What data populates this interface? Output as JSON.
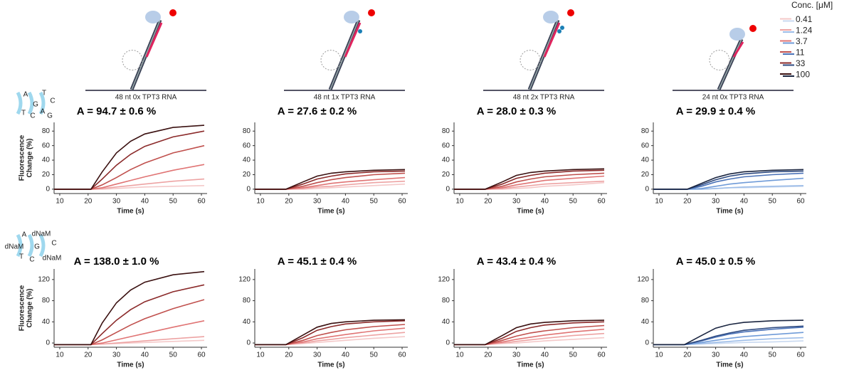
{
  "legend": {
    "title": "Conc. [μM]"
  },
  "schematics": [
    "48 nt 0x TPT3 RNA",
    "48 nt 1x TPT3 RNA",
    "48 nt 2x TPT3 RNA",
    "24 nt 0x TPT3 RNA"
  ],
  "helix_labels": [
    [
      "A",
      "T",
      "G",
      "C",
      "T",
      "C",
      "A",
      "G"
    ],
    [
      "A",
      "dNaM",
      "dNaM",
      "G",
      "C",
      "T",
      "C",
      "dNaM"
    ]
  ],
  "chart_data": [
    {
      "type": "line",
      "title": "A = 94.7 ± 0.6 %",
      "xlabel": "Time (s)",
      "ylabel": [
        "Fluorescence",
        "Change (%)"
      ],
      "xlim": [
        8,
        62
      ],
      "ylim": [
        -6,
        92
      ],
      "xticks": [
        10,
        20,
        30,
        40,
        50,
        60
      ],
      "yticks": [
        0,
        20,
        40,
        60,
        80
      ],
      "x": [
        8,
        21,
        25,
        30,
        35,
        40,
        50,
        61
      ],
      "series": [
        {
          "name": "0.41",
          "color": "#f4c9c9",
          "values": [
            0,
            0,
            0,
            1,
            2,
            3,
            4,
            5
          ]
        },
        {
          "name": "1.24",
          "color": "#eda3a3",
          "values": [
            0,
            0,
            1,
            3,
            5,
            7,
            11,
            14
          ]
        },
        {
          "name": "3.7",
          "color": "#e07474",
          "values": [
            0,
            0,
            2,
            7,
            12,
            17,
            26,
            34
          ]
        },
        {
          "name": "11",
          "color": "#c0504d",
          "values": [
            0,
            0,
            6,
            16,
            27,
            36,
            50,
            60
          ]
        },
        {
          "name": "33",
          "color": "#8b2a2a",
          "values": [
            0,
            0,
            14,
            33,
            48,
            59,
            72,
            80
          ]
        },
        {
          "name": "100",
          "color": "#3a1010",
          "values": [
            0,
            0,
            24,
            50,
            66,
            76,
            85,
            88
          ]
        }
      ]
    },
    {
      "type": "line",
      "title": "A = 27.6 ± 0.2 %",
      "xlabel": "Time (s)",
      "xlim": [
        8,
        62
      ],
      "ylim": [
        -6,
        92
      ],
      "xticks": [
        10,
        20,
        30,
        40,
        50,
        60
      ],
      "yticks": [
        0,
        20,
        40,
        60,
        80
      ],
      "x": [
        8,
        19,
        25,
        30,
        35,
        40,
        50,
        61
      ],
      "series": [
        {
          "color": "#f4c9c9",
          "values": [
            0,
            0,
            0,
            1,
            2,
            3,
            5,
            7
          ]
        },
        {
          "color": "#eda3a3",
          "values": [
            0,
            0,
            1,
            3,
            4,
            6,
            9,
            11
          ]
        },
        {
          "color": "#e07474",
          "values": [
            0,
            0,
            2,
            5,
            8,
            10,
            13,
            16
          ]
        },
        {
          "color": "#c0504d",
          "values": [
            0,
            0,
            4,
            9,
            13,
            16,
            20,
            22
          ]
        },
        {
          "color": "#8b2a2a",
          "values": [
            0,
            0,
            7,
            14,
            18,
            21,
            24,
            25
          ]
        },
        {
          "color": "#3a1010",
          "values": [
            0,
            0,
            10,
            18,
            22,
            24,
            26,
            27
          ]
        }
      ]
    },
    {
      "type": "line",
      "title": "A = 28.0 ± 0.3 %",
      "xlabel": "Time (s)",
      "xlim": [
        8,
        62
      ],
      "ylim": [
        -6,
        92
      ],
      "xticks": [
        10,
        20,
        30,
        40,
        50,
        60
      ],
      "yticks": [
        0,
        20,
        40,
        60,
        80
      ],
      "x": [
        8,
        19,
        25,
        30,
        35,
        40,
        50,
        61
      ],
      "series": [
        {
          "color": "#f4c9c9",
          "values": [
            0,
            0,
            0,
            1,
            2,
            4,
            6,
            9
          ]
        },
        {
          "color": "#eda3a3",
          "values": [
            0,
            0,
            1,
            3,
            5,
            7,
            9,
            11
          ]
        },
        {
          "color": "#e07474",
          "values": [
            0,
            0,
            2,
            6,
            9,
            12,
            15,
            18
          ]
        },
        {
          "color": "#c0504d",
          "values": [
            0,
            0,
            4,
            10,
            14,
            17,
            20,
            22
          ]
        },
        {
          "color": "#8b2a2a",
          "values": [
            0,
            0,
            7,
            15,
            19,
            22,
            25,
            26
          ]
        },
        {
          "color": "#3a1010",
          "values": [
            0,
            0,
            10,
            19,
            23,
            25,
            27,
            28
          ]
        }
      ]
    },
    {
      "type": "line",
      "title": "A = 29.9 ± 0.4 %",
      "xlabel": "Time (s)",
      "xlim": [
        8,
        62
      ],
      "ylim": [
        -6,
        92
      ],
      "xticks": [
        10,
        20,
        30,
        40,
        50,
        60
      ],
      "yticks": [
        0,
        20,
        40,
        60,
        80
      ],
      "x": [
        8,
        20,
        25,
        30,
        35,
        40,
        50,
        61
      ],
      "series": [
        {
          "color": "#c9d9f0",
          "values": [
            0,
            0,
            0,
            1,
            2,
            2,
            3,
            4
          ]
        },
        {
          "color": "#9dbde8",
          "values": [
            0,
            0,
            0,
            1,
            2,
            3,
            4,
            5
          ]
        },
        {
          "color": "#6f9bd8",
          "values": [
            0,
            0,
            1,
            4,
            7,
            9,
            12,
            15
          ]
        },
        {
          "color": "#4a72b8",
          "values": [
            0,
            0,
            4,
            10,
            14,
            17,
            20,
            22
          ]
        },
        {
          "color": "#2e4a80",
          "values": [
            0,
            0,
            6,
            13,
            18,
            21,
            24,
            25
          ]
        },
        {
          "color": "#1a2540",
          "values": [
            0,
            0,
            8,
            16,
            21,
            24,
            26,
            27
          ]
        }
      ]
    },
    {
      "type": "line",
      "title": "A = 138.0 ± 1.0 %",
      "xlabel": "Time (s)",
      "ylabel": [
        "Fluorescence",
        "Change (%)"
      ],
      "xlim": [
        8,
        62
      ],
      "ylim": [
        -8,
        140
      ],
      "xticks": [
        10,
        20,
        30,
        40,
        50,
        60
      ],
      "yticks": [
        0,
        40,
        80,
        120
      ],
      "x": [
        8,
        21,
        25,
        30,
        35,
        40,
        50,
        61
      ],
      "series": [
        {
          "color": "#f4c9c9",
          "values": [
            -3,
            -3,
            -2,
            -1,
            0,
            1,
            3,
            5
          ]
        },
        {
          "color": "#eda3a3",
          "values": [
            -3,
            -3,
            -2,
            0,
            2,
            4,
            8,
            12
          ]
        },
        {
          "color": "#e07474",
          "values": [
            -3,
            -3,
            0,
            6,
            12,
            18,
            30,
            42
          ]
        },
        {
          "color": "#c0504d",
          "values": [
            -3,
            -3,
            6,
            20,
            34,
            46,
            65,
            82
          ]
        },
        {
          "color": "#8b2a2a",
          "values": [
            -3,
            -3,
            18,
            43,
            63,
            78,
            97,
            110
          ]
        },
        {
          "color": "#3a1010",
          "values": [
            -3,
            -3,
            38,
            76,
            100,
            115,
            129,
            135
          ]
        }
      ]
    },
    {
      "type": "line",
      "title": "A = 45.1 ± 0.4 %",
      "xlabel": "Time (s)",
      "xlim": [
        8,
        62
      ],
      "ylim": [
        -8,
        140
      ],
      "xticks": [
        10,
        20,
        30,
        40,
        50,
        60
      ],
      "yticks": [
        0,
        40,
        80,
        120
      ],
      "x": [
        8,
        19,
        25,
        30,
        35,
        40,
        50,
        61
      ],
      "series": [
        {
          "color": "#f4c9c9",
          "values": [
            -3,
            -3,
            -1,
            1,
            3,
            5,
            9,
            12
          ]
        },
        {
          "color": "#eda3a3",
          "values": [
            -3,
            -3,
            0,
            4,
            7,
            10,
            15,
            20
          ]
        },
        {
          "color": "#e07474",
          "values": [
            -3,
            -3,
            2,
            8,
            12,
            16,
            23,
            28
          ]
        },
        {
          "color": "#c0504d",
          "values": [
            -3,
            -3,
            5,
            14,
            20,
            25,
            31,
            35
          ]
        },
        {
          "color": "#8b2a2a",
          "values": [
            -3,
            -3,
            10,
            24,
            31,
            36,
            40,
            42
          ]
        },
        {
          "color": "#3a1010",
          "values": [
            -3,
            -3,
            15,
            30,
            37,
            40,
            43,
            44
          ]
        }
      ]
    },
    {
      "type": "line",
      "title": "A = 43.4 ± 0.4 %",
      "xlabel": "Time (s)",
      "xlim": [
        8,
        62
      ],
      "ylim": [
        -8,
        140
      ],
      "xticks": [
        10,
        20,
        30,
        40,
        50,
        60
      ],
      "yticks": [
        0,
        40,
        80,
        120
      ],
      "x": [
        8,
        19,
        25,
        30,
        35,
        40,
        50,
        61
      ],
      "series": [
        {
          "color": "#f4c9c9",
          "values": [
            -3,
            -3,
            -1,
            0,
            2,
            4,
            7,
            10
          ]
        },
        {
          "color": "#eda3a3",
          "values": [
            -3,
            -3,
            0,
            3,
            6,
            9,
            14,
            18
          ]
        },
        {
          "color": "#e07474",
          "values": [
            -3,
            -3,
            2,
            7,
            11,
            15,
            21,
            26
          ]
        },
        {
          "color": "#c0504d",
          "values": [
            -3,
            -3,
            5,
            13,
            19,
            23,
            29,
            33
          ]
        },
        {
          "color": "#8b2a2a",
          "values": [
            -3,
            -3,
            9,
            22,
            29,
            34,
            38,
            40
          ]
        },
        {
          "color": "#3a1010",
          "values": [
            -3,
            -3,
            14,
            29,
            36,
            39,
            42,
            43
          ]
        }
      ]
    },
    {
      "type": "line",
      "title": "A = 45.0 ± 0.5 %",
      "xlabel": "Time (s)",
      "xlim": [
        8,
        62
      ],
      "ylim": [
        -8,
        140
      ],
      "xticks": [
        10,
        20,
        30,
        40,
        50,
        60
      ],
      "yticks": [
        0,
        40,
        80,
        120
      ],
      "x": [
        8,
        19,
        25,
        30,
        35,
        40,
        50,
        61
      ],
      "series": [
        {
          "color": "#c9d9f0",
          "values": [
            -3,
            -3,
            -2,
            -1,
            0,
            1,
            2,
            4
          ]
        },
        {
          "color": "#9dbde8",
          "values": [
            -3,
            -3,
            -1,
            1,
            3,
            5,
            8,
            10
          ]
        },
        {
          "color": "#6f9bd8",
          "values": [
            -3,
            -3,
            1,
            5,
            9,
            12,
            16,
            20
          ]
        },
        {
          "color": "#4a72b8",
          "values": [
            -3,
            -3,
            4,
            11,
            17,
            21,
            26,
            30
          ]
        },
        {
          "color": "#2e4a80",
          "values": [
            -3,
            -3,
            5,
            13,
            19,
            24,
            29,
            32
          ]
        },
        {
          "color": "#1a2540",
          "values": [
            -3,
            -3,
            14,
            28,
            35,
            39,
            42,
            43
          ]
        }
      ]
    }
  ]
}
